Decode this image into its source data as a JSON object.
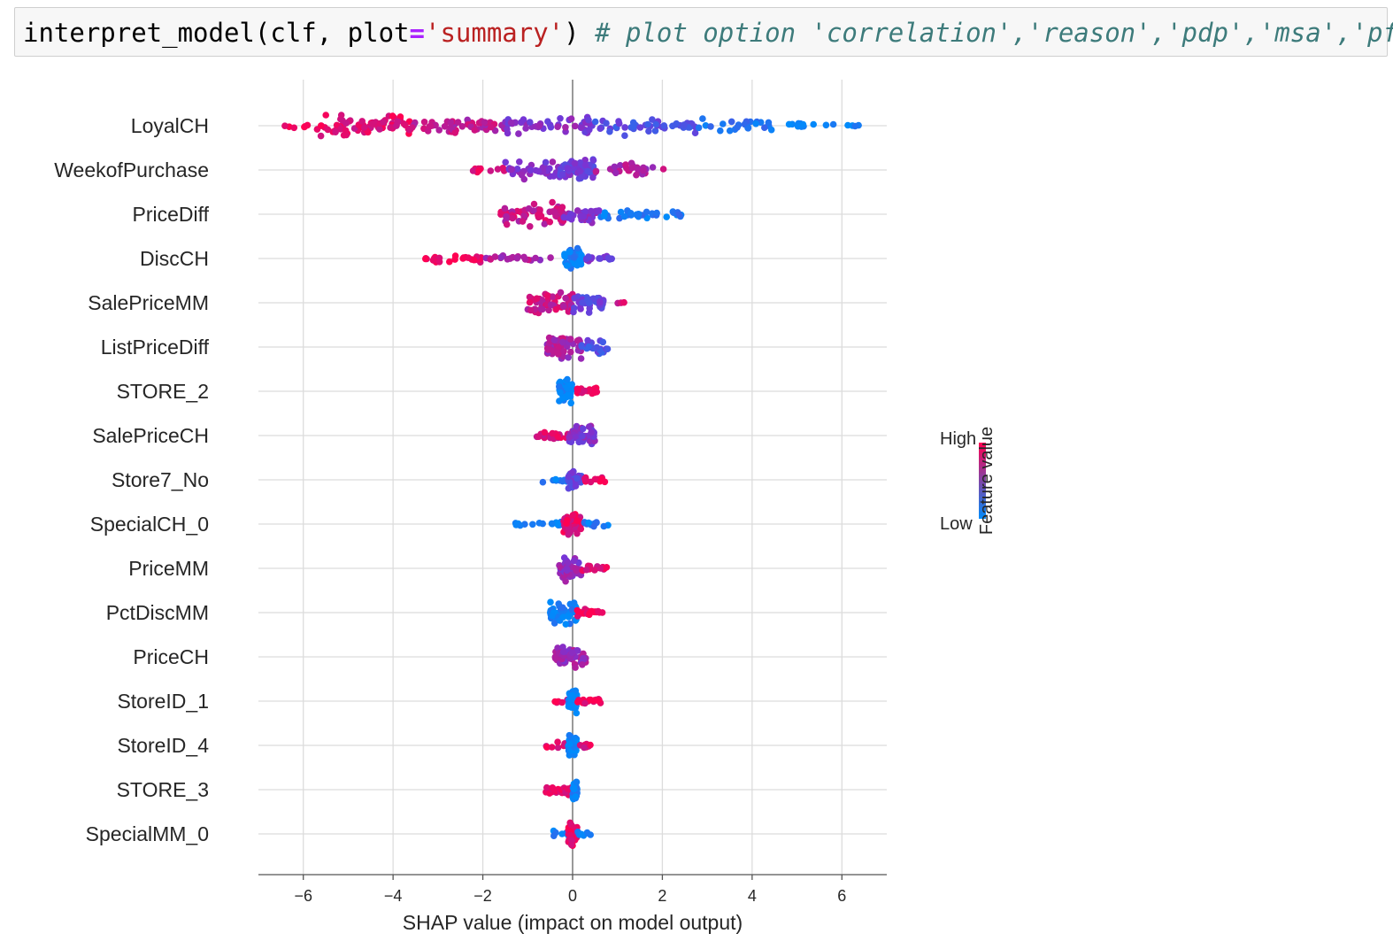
{
  "code": {
    "func": "interpret_model",
    "open_paren": "(",
    "arg": "clf, plot",
    "eq": "=",
    "str": "'summary'",
    "close_paren": ")",
    "comment": "# plot option 'correlation','reason','pdp','msa','pfi'"
  },
  "chart_data": {
    "type": "scatter",
    "subtype": "shap-beeswarm",
    "xlabel": "SHAP value (impact on model output)",
    "xlim": [
      -7,
      7
    ],
    "xticks": [
      -6,
      -4,
      -2,
      0,
      2,
      4,
      6
    ],
    "xtick_labels": [
      "−6",
      "−4",
      "−2",
      "0",
      "2",
      "4",
      "6"
    ],
    "colorbar": {
      "label": "Feature value",
      "high": "High",
      "low": "Low",
      "high_color": "#ff0052",
      "low_color": "#008bfb"
    },
    "features": [
      {
        "name": "LoyalCH",
        "groups": [
          {
            "x": [
              -6.5,
              -5.7
            ],
            "v": 0.95,
            "n": 6,
            "w": 0.3
          },
          {
            "x": [
              -5.7,
              -3.6
            ],
            "v": 0.9,
            "n": 75,
            "w": 1.0
          },
          {
            "x": [
              -3.6,
              -1.5
            ],
            "v": 0.75,
            "n": 50,
            "w": 0.8
          },
          {
            "x": [
              -1.5,
              0.5
            ],
            "v": 0.55,
            "n": 45,
            "w": 0.8
          },
          {
            "x": [
              0.5,
              2.8
            ],
            "v": 0.35,
            "n": 45,
            "w": 0.8
          },
          {
            "x": [
              2.8,
              4.5
            ],
            "v": 0.15,
            "n": 25,
            "w": 0.6
          },
          {
            "x": [
              4.8,
              6.4
            ],
            "v": 0.02,
            "n": 15,
            "w": 0.3
          }
        ]
      },
      {
        "name": "WeekofPurchase",
        "groups": [
          {
            "x": [
              -2.5,
              -1.5
            ],
            "v": 0.9,
            "n": 10,
            "w": 0.3
          },
          {
            "x": [
              -1.5,
              -0.3
            ],
            "v": 0.55,
            "n": 40,
            "w": 0.8
          },
          {
            "x": [
              -0.3,
              0.5
            ],
            "v": 0.45,
            "n": 60,
            "w": 1.0
          },
          {
            "x": [
              0.5,
              1.8
            ],
            "v": 0.7,
            "n": 30,
            "w": 0.6
          },
          {
            "x": [
              2.0,
              2.2
            ],
            "v": 0.8,
            "n": 1,
            "w": 0.1
          }
        ]
      },
      {
        "name": "PriceDiff",
        "groups": [
          {
            "x": [
              -1.6,
              -0.2
            ],
            "v": 0.8,
            "n": 60,
            "w": 1.0
          },
          {
            "x": [
              -0.2,
              0.6
            ],
            "v": 0.55,
            "n": 35,
            "w": 0.8
          },
          {
            "x": [
              0.6,
              2.5
            ],
            "v": 0.1,
            "n": 35,
            "w": 0.4
          }
        ]
      },
      {
        "name": "DiscCH",
        "groups": [
          {
            "x": [
              -3.3,
              -2.0
            ],
            "v": 0.95,
            "n": 25,
            "w": 0.35
          },
          {
            "x": [
              -2.0,
              -0.4
            ],
            "v": 0.7,
            "n": 20,
            "w": 0.3
          },
          {
            "x": [
              -0.2,
              0.2
            ],
            "v": 0.05,
            "n": 45,
            "w": 1.0
          },
          {
            "x": [
              0.2,
              0.9
            ],
            "v": 0.5,
            "n": 15,
            "w": 0.3
          }
        ]
      },
      {
        "name": "SalePriceMM",
        "groups": [
          {
            "x": [
              -1.0,
              0.0
            ],
            "v": 0.8,
            "n": 55,
            "w": 1.0
          },
          {
            "x": [
              0.0,
              0.7
            ],
            "v": 0.4,
            "n": 40,
            "w": 0.8
          },
          {
            "x": [
              0.9,
              1.2
            ],
            "v": 0.85,
            "n": 3,
            "w": 0.1
          }
        ]
      },
      {
        "name": "ListPriceDiff",
        "groups": [
          {
            "x": [
              -0.6,
              0.2
            ],
            "v": 0.7,
            "n": 60,
            "w": 1.0
          },
          {
            "x": [
              0.2,
              0.8
            ],
            "v": 0.35,
            "n": 25,
            "w": 0.6
          }
        ]
      },
      {
        "name": "STORE_2",
        "groups": [
          {
            "x": [
              -0.3,
              0.0
            ],
            "v": 0.02,
            "n": 60,
            "w": 1.0
          },
          {
            "x": [
              0.0,
              0.6
            ],
            "v": 0.95,
            "n": 20,
            "w": 0.35
          }
        ]
      },
      {
        "name": "SalePriceCH",
        "groups": [
          {
            "x": [
              -0.8,
              -0.1
            ],
            "v": 0.85,
            "n": 20,
            "w": 0.4
          },
          {
            "x": [
              -0.1,
              0.5
            ],
            "v": 0.55,
            "n": 50,
            "w": 1.0
          }
        ]
      },
      {
        "name": "Store7_No",
        "groups": [
          {
            "x": [
              -0.8,
              -0.1
            ],
            "v": 0.1,
            "n": 12,
            "w": 0.3
          },
          {
            "x": [
              -0.1,
              0.2
            ],
            "v": 0.4,
            "n": 40,
            "w": 1.0
          },
          {
            "x": [
              0.2,
              0.8
            ],
            "v": 0.95,
            "n": 12,
            "w": 0.3
          }
        ]
      },
      {
        "name": "SpecialCH_0",
        "groups": [
          {
            "x": [
              -1.3,
              -0.2
            ],
            "v": 0.05,
            "n": 15,
            "w": 0.3
          },
          {
            "x": [
              -0.2,
              0.2
            ],
            "v": 0.9,
            "n": 60,
            "w": 1.0
          },
          {
            "x": [
              0.2,
              0.8
            ],
            "v": 0.1,
            "n": 12,
            "w": 0.3
          }
        ]
      },
      {
        "name": "PriceMM",
        "groups": [
          {
            "x": [
              -0.3,
              0.2
            ],
            "v": 0.6,
            "n": 55,
            "w": 1.0
          },
          {
            "x": [
              0.2,
              0.8
            ],
            "v": 0.9,
            "n": 15,
            "w": 0.3
          }
        ]
      },
      {
        "name": "PctDiscMM",
        "groups": [
          {
            "x": [
              -0.5,
              0.1
            ],
            "v": 0.05,
            "n": 55,
            "w": 1.0
          },
          {
            "x": [
              0.1,
              0.7
            ],
            "v": 0.95,
            "n": 25,
            "w": 0.35
          }
        ]
      },
      {
        "name": "PriceCH",
        "groups": [
          {
            "x": [
              -0.4,
              0.3
            ],
            "v": 0.65,
            "n": 60,
            "w": 1.0
          }
        ]
      },
      {
        "name": "StoreID_1",
        "groups": [
          {
            "x": [
              -0.4,
              -0.05
            ],
            "v": 0.9,
            "n": 6,
            "w": 0.3
          },
          {
            "x": [
              -0.1,
              0.1
            ],
            "v": 0.02,
            "n": 55,
            "w": 1.0
          },
          {
            "x": [
              0.1,
              0.7
            ],
            "v": 0.95,
            "n": 15,
            "w": 0.3
          }
        ]
      },
      {
        "name": "StoreID_4",
        "groups": [
          {
            "x": [
              -0.6,
              -0.1
            ],
            "v": 0.9,
            "n": 12,
            "w": 0.3
          },
          {
            "x": [
              -0.1,
              0.1
            ],
            "v": 0.02,
            "n": 55,
            "w": 1.0
          },
          {
            "x": [
              0.1,
              0.5
            ],
            "v": 0.9,
            "n": 8,
            "w": 0.3
          }
        ]
      },
      {
        "name": "STORE_3",
        "groups": [
          {
            "x": [
              -0.6,
              0.0
            ],
            "v": 0.95,
            "n": 30,
            "w": 0.4
          },
          {
            "x": [
              0.0,
              0.1
            ],
            "v": 0.05,
            "n": 40,
            "w": 1.0
          }
        ]
      },
      {
        "name": "SpecialMM_0",
        "groups": [
          {
            "x": [
              -0.5,
              -0.1
            ],
            "v": 0.05,
            "n": 8,
            "w": 0.3
          },
          {
            "x": [
              -0.1,
              0.1
            ],
            "v": 0.9,
            "n": 55,
            "w": 1.0
          },
          {
            "x": [
              0.1,
              0.4
            ],
            "v": 0.05,
            "n": 8,
            "w": 0.3
          }
        ]
      }
    ]
  }
}
